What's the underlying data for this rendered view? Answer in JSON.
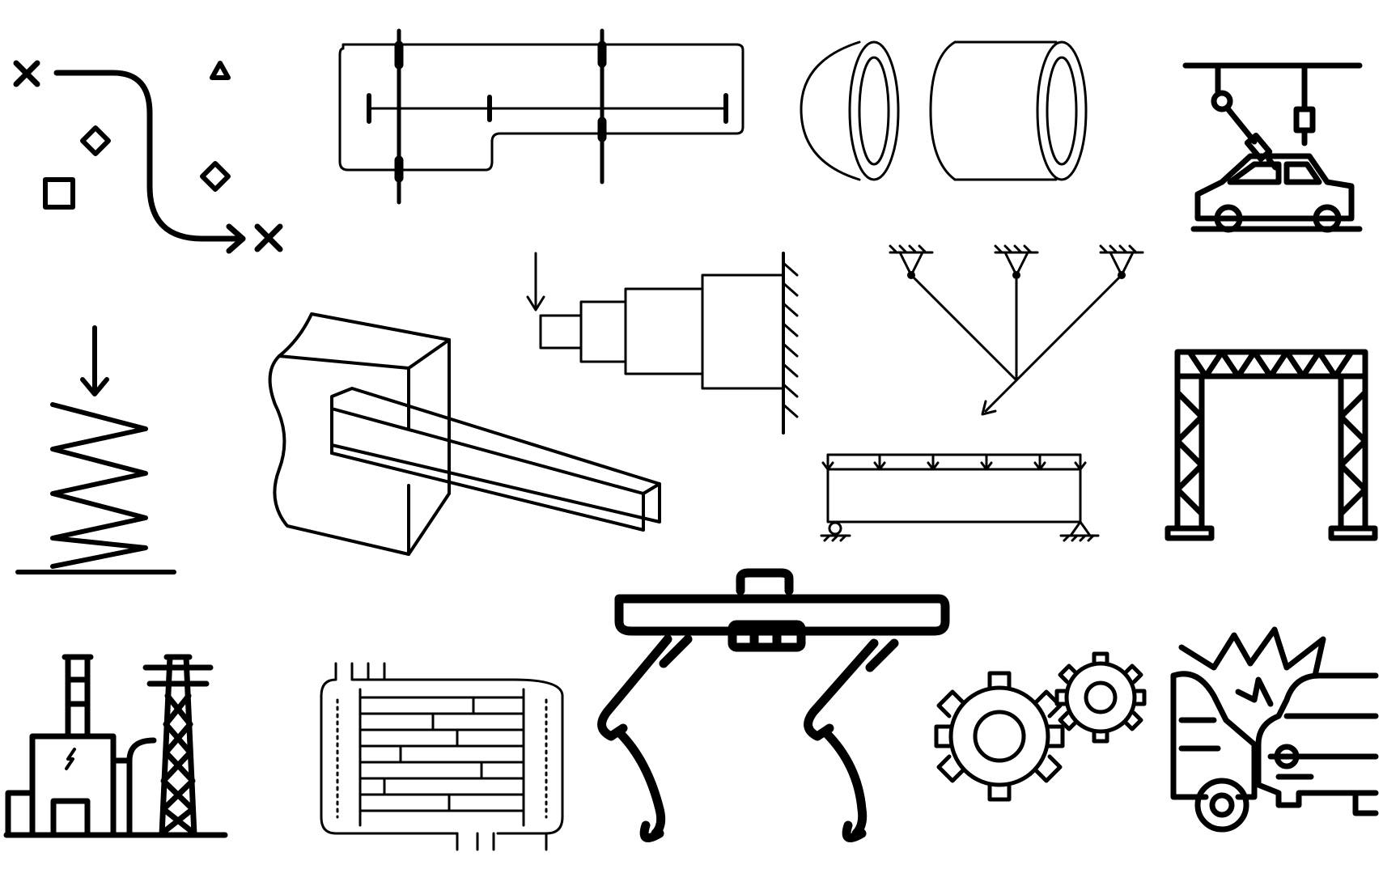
{
  "collage": {
    "background": "#ffffff",
    "stroke_color": "#000000",
    "icons": [
      "path-planning-icon",
      "plate-with-crosshair-icon",
      "dome-and-cylinder-shell-icon",
      "robotic-arm-car-assembly-icon",
      "compression-spring-icon",
      "cantilever-beam-block-icon",
      "stepped-shaft-icon",
      "three-bar-truss-icon",
      "uniformly-loaded-beam-icon",
      "truss-gantry-frame-icon",
      "power-plant-tower-icon",
      "heat-exchanger-icon",
      "quadruped-robot-icon",
      "gears-icon",
      "car-crash-icon"
    ]
  }
}
